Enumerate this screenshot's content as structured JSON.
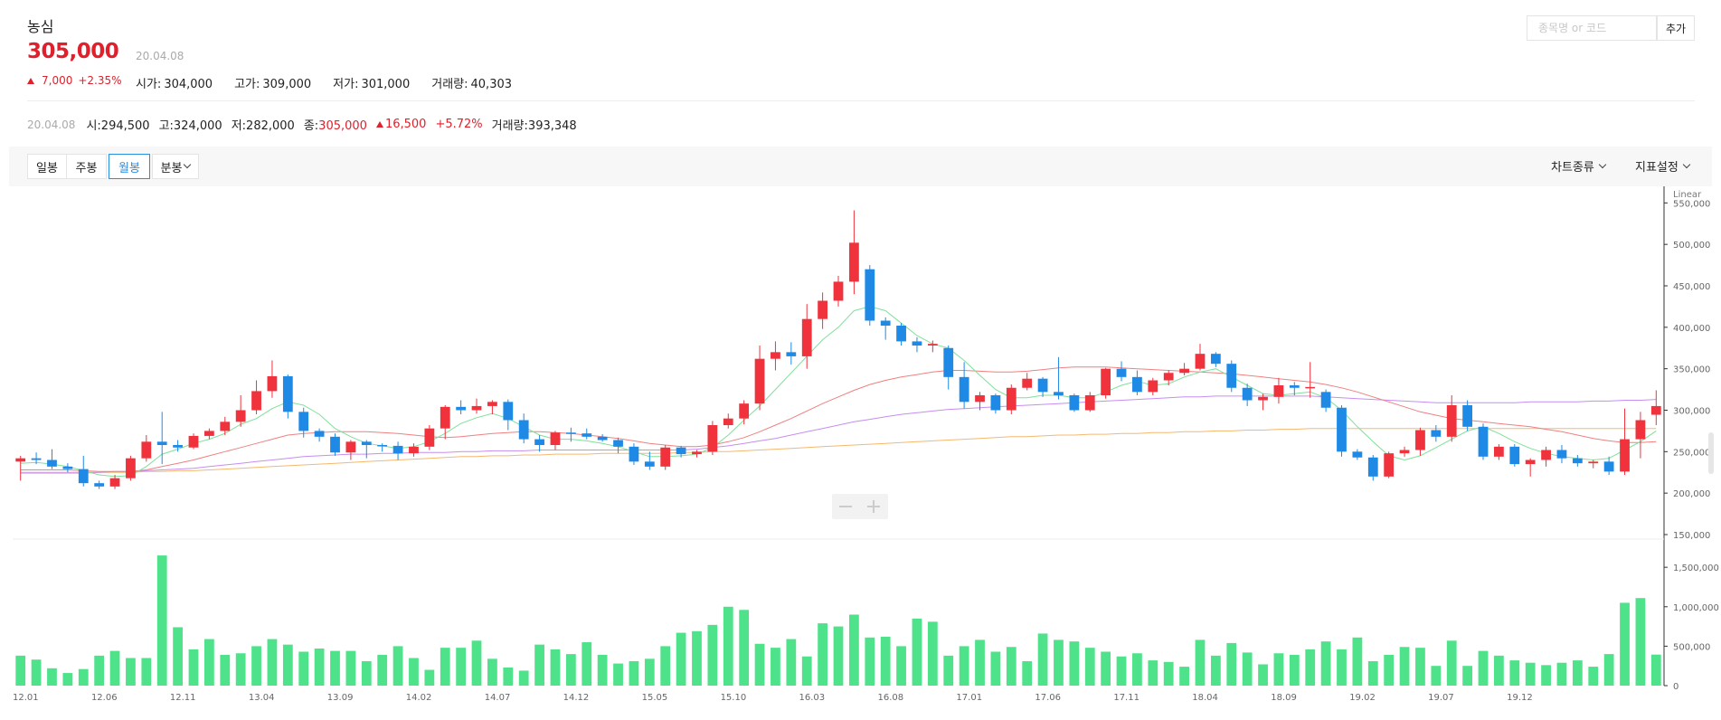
{
  "stock": {
    "name": "농심",
    "price": "305,000",
    "date": "20.04.08",
    "change": "7,000",
    "change_pct": "+2.35%",
    "open_label": "시가",
    "open": "304,000",
    "high_label": "고가",
    "high": "309,000",
    "low_label": "저가",
    "low": "301,000",
    "volume_label": "거래량",
    "volume": "40,303"
  },
  "search": {
    "placeholder": "종목명 or 코드",
    "add_label": "추가"
  },
  "info": {
    "date": "20.04.08",
    "open_label": "시",
    "open": "294,500",
    "high_label": "고",
    "high": "324,000",
    "low_label": "저",
    "low": "282,000",
    "close_label": "종",
    "close": "305,000",
    "change": "16,500",
    "change_pct": "+5.72%",
    "volume_label": "거래량",
    "volume": "393,348"
  },
  "toolbar": {
    "daily": "일봉",
    "weekly": "주봉",
    "monthly": "월봉",
    "minute": "분봉",
    "chart_type": "차트종류",
    "indicator": "지표설정"
  },
  "colors": {
    "up": "#f0323c",
    "down": "#1e8ae6",
    "volume": "#4ee38a",
    "ma5": "#7fe09a",
    "ma20": "#ef8080",
    "ma60": "#c68ef0",
    "ma120": "#f5b870"
  },
  "chart_data": {
    "type": "candlestick",
    "price_scale_label": "Linear",
    "y_ticks": [
      "150,000",
      "200,000",
      "250,000",
      "300,000",
      "350,000",
      "400,000",
      "450,000",
      "500,000",
      "550,000"
    ],
    "volume_ticks": [
      "0",
      "500,000",
      "1,000,000",
      "1,500,000"
    ],
    "x_ticks": [
      "12.01",
      "12.06",
      "12.11",
      "13.04",
      "13.09",
      "14.02",
      "14.07",
      "14.12",
      "15.05",
      "15.10",
      "16.03",
      "16.08",
      "17.01",
      "17.06",
      "17.11",
      "18.04",
      "18.09",
      "19.02",
      "19.07",
      "19.12"
    ],
    "ylim": [
      150000,
      570000
    ],
    "volume_lim": [
      0,
      1800000
    ],
    "candles": [
      [
        238000,
        242000,
        215000,
        245000,
        380000
      ],
      [
        242000,
        240000,
        235000,
        249000,
        330000
      ],
      [
        240000,
        232000,
        229000,
        253000,
        220000
      ],
      [
        232000,
        229000,
        225000,
        236000,
        160000
      ],
      [
        229000,
        212000,
        208000,
        245000,
        210000
      ],
      [
        212000,
        208000,
        205000,
        215000,
        380000
      ],
      [
        208000,
        218000,
        205000,
        222000,
        440000
      ],
      [
        218000,
        242000,
        215000,
        245000,
        350000
      ],
      [
        242000,
        262000,
        238000,
        270000,
        350000
      ],
      [
        262000,
        258000,
        235000,
        298000,
        1650000
      ],
      [
        258000,
        255000,
        250000,
        264000,
        740000
      ],
      [
        255000,
        269000,
        253000,
        272000,
        460000
      ],
      [
        269000,
        275000,
        265000,
        278000,
        590000
      ],
      [
        275000,
        286000,
        270000,
        292000,
        390000
      ],
      [
        286000,
        300000,
        280000,
        318000,
        410000
      ],
      [
        300000,
        323000,
        295000,
        336000,
        500000
      ],
      [
        323000,
        341000,
        315000,
        360000,
        590000
      ],
      [
        341000,
        298000,
        290000,
        343000,
        520000
      ],
      [
        298000,
        275000,
        267000,
        303000,
        430000
      ],
      [
        275000,
        268000,
        262000,
        278000,
        470000
      ],
      [
        268000,
        249000,
        245000,
        272000,
        440000
      ],
      [
        249000,
        262000,
        240000,
        264000,
        440000
      ],
      [
        262000,
        258000,
        242000,
        264000,
        310000
      ],
      [
        258000,
        257000,
        250000,
        260000,
        390000
      ],
      [
        257000,
        248000,
        240000,
        262000,
        500000
      ],
      [
        248000,
        256000,
        244000,
        260000,
        350000
      ],
      [
        256000,
        278000,
        252000,
        282000,
        200000
      ],
      [
        278000,
        304000,
        265000,
        306000,
        480000
      ],
      [
        304000,
        300000,
        295000,
        312000,
        480000
      ],
      [
        300000,
        305000,
        296000,
        314000,
        570000
      ],
      [
        305000,
        310000,
        295000,
        312000,
        340000
      ],
      [
        310000,
        288000,
        276000,
        313000,
        230000
      ],
      [
        288000,
        265000,
        260000,
        296000,
        190000
      ],
      [
        265000,
        258000,
        250000,
        270000,
        520000
      ],
      [
        258000,
        273000,
        252000,
        275000,
        460000
      ],
      [
        273000,
        272000,
        262000,
        279000,
        400000
      ],
      [
        272000,
        268000,
        265000,
        278000,
        550000
      ],
      [
        268000,
        264000,
        262000,
        271000,
        390000
      ],
      [
        264000,
        256000,
        248000,
        267000,
        280000
      ],
      [
        256000,
        238000,
        234000,
        260000,
        310000
      ],
      [
        238000,
        232000,
        228000,
        250000,
        340000
      ],
      [
        232000,
        255000,
        228000,
        258000,
        500000
      ],
      [
        255000,
        247000,
        243000,
        257000,
        670000
      ],
      [
        247000,
        250000,
        243000,
        252000,
        690000
      ],
      [
        250000,
        282000,
        246000,
        287000,
        770000
      ],
      [
        282000,
        290000,
        278000,
        296000,
        1000000
      ],
      [
        290000,
        308000,
        283000,
        312000,
        960000
      ],
      [
        308000,
        362000,
        300000,
        378000,
        530000
      ],
      [
        362000,
        370000,
        348000,
        383000,
        480000
      ],
      [
        370000,
        365000,
        355000,
        382000,
        590000
      ],
      [
        365000,
        410000,
        350000,
        428000,
        370000
      ],
      [
        410000,
        432000,
        398000,
        442000,
        790000
      ],
      [
        432000,
        455000,
        425000,
        462000,
        750000
      ],
      [
        455000,
        502000,
        440000,
        541000,
        900000
      ],
      [
        470000,
        408000,
        402000,
        475000,
        610000
      ],
      [
        408000,
        402000,
        385000,
        412000,
        620000
      ],
      [
        402000,
        383000,
        378000,
        405000,
        500000
      ],
      [
        383000,
        378000,
        370000,
        388000,
        850000
      ],
      [
        378000,
        380000,
        370000,
        384000,
        810000
      ],
      [
        375000,
        340000,
        325000,
        378000,
        380000
      ],
      [
        340000,
        310000,
        302000,
        358000,
        500000
      ],
      [
        310000,
        318000,
        300000,
        322000,
        580000
      ],
      [
        318000,
        300000,
        296000,
        320000,
        430000
      ],
      [
        300000,
        327000,
        295000,
        331000,
        490000
      ],
      [
        327000,
        338000,
        324000,
        345000,
        310000
      ],
      [
        338000,
        322000,
        316000,
        340000,
        660000
      ],
      [
        322000,
        318000,
        313000,
        364000,
        580000
      ],
      [
        318000,
        300000,
        298000,
        320000,
        560000
      ],
      [
        300000,
        318000,
        298000,
        322000,
        480000
      ],
      [
        318000,
        350000,
        314000,
        351000,
        430000
      ],
      [
        350000,
        340000,
        335000,
        359000,
        370000
      ],
      [
        340000,
        322000,
        318000,
        348000,
        410000
      ],
      [
        322000,
        336000,
        318000,
        339000,
        320000
      ],
      [
        336000,
        345000,
        330000,
        348000,
        300000
      ],
      [
        345000,
        350000,
        342000,
        357000,
        240000
      ],
      [
        350000,
        368000,
        348000,
        380000,
        580000
      ],
      [
        368000,
        356000,
        352000,
        370000,
        380000
      ],
      [
        356000,
        327000,
        322000,
        360000,
        540000
      ],
      [
        327000,
        312000,
        305000,
        332000,
        420000
      ],
      [
        312000,
        316000,
        300000,
        320000,
        270000
      ],
      [
        316000,
        330000,
        308000,
        339000,
        410000
      ],
      [
        330000,
        327000,
        318000,
        334000,
        390000
      ],
      [
        327000,
        328000,
        315000,
        358000,
        460000
      ],
      [
        322000,
        303000,
        298000,
        325000,
        560000
      ],
      [
        303000,
        250000,
        244000,
        306000,
        460000
      ],
      [
        250000,
        243000,
        240000,
        253000,
        610000
      ],
      [
        243000,
        220000,
        215000,
        246000,
        310000
      ],
      [
        220000,
        248000,
        218000,
        250000,
        390000
      ],
      [
        248000,
        252000,
        244000,
        256000,
        490000
      ],
      [
        252000,
        276000,
        245000,
        279000,
        480000
      ],
      [
        276000,
        268000,
        262000,
        282000,
        250000
      ],
      [
        268000,
        306000,
        262000,
        318000,
        570000
      ],
      [
        306000,
        280000,
        275000,
        312000,
        250000
      ],
      [
        280000,
        244000,
        240000,
        284000,
        440000
      ],
      [
        244000,
        256000,
        240000,
        259000,
        380000
      ],
      [
        256000,
        235000,
        232000,
        259000,
        320000
      ],
      [
        235000,
        240000,
        220000,
        242000,
        290000
      ],
      [
        240000,
        252000,
        232000,
        256000,
        260000
      ],
      [
        252000,
        242000,
        236000,
        258000,
        290000
      ],
      [
        242000,
        236000,
        232000,
        246000,
        320000
      ],
      [
        236000,
        238000,
        230000,
        240000,
        240000
      ],
      [
        238000,
        226000,
        222000,
        244000,
        400000
      ],
      [
        226000,
        265000,
        222000,
        302000,
        1050000
      ],
      [
        265000,
        288000,
        242000,
        298000,
        1110000
      ],
      [
        294500,
        305000,
        282000,
        324000,
        393348
      ]
    ],
    "ma5": [
      236000,
      237000,
      235000,
      232000,
      227000,
      222000,
      220000,
      221000,
      232000,
      247000,
      253000,
      260000,
      265000,
      272000,
      283000,
      290000,
      302000,
      310000,
      306000,
      295000,
      278000,
      268000,
      260000,
      257000,
      254000,
      256000,
      262000,
      272000,
      284000,
      291000,
      296000,
      290000,
      280000,
      270000,
      265000,
      265000,
      263000,
      260000,
      256000,
      250000,
      244000,
      244000,
      245000,
      247000,
      255000,
      270000,
      288000,
      305000,
      325000,
      345000,
      365000,
      385000,
      400000,
      420000,
      425000,
      420000,
      405000,
      390000,
      380000,
      375000,
      360000,
      342000,
      325000,
      315000,
      315000,
      318000,
      318000,
      315000,
      315000,
      322000,
      330000,
      335000,
      330000,
      332000,
      340000,
      346000,
      350000,
      340000,
      330000,
      320000,
      318000,
      320000,
      322000,
      315000,
      300000,
      280000,
      262000,
      245000,
      240000,
      245000,
      255000,
      265000,
      275000,
      280000,
      272000,
      262000,
      254000,
      248000,
      244000,
      242000,
      240000,
      242000,
      252000,
      262000,
      275000
    ],
    "ma20": [
      228000,
      228000,
      228000,
      228000,
      227000,
      226000,
      226000,
      226000,
      228000,
      232000,
      236000,
      240000,
      245000,
      250000,
      255000,
      260000,
      265000,
      270000,
      272000,
      273000,
      274000,
      274000,
      274000,
      273000,
      272000,
      270000,
      268000,
      267000,
      268000,
      270000,
      272000,
      273000,
      274000,
      274000,
      273000,
      272000,
      270000,
      268000,
      266000,
      263000,
      260000,
      258000,
      256000,
      256000,
      258000,
      262000,
      267000,
      274000,
      282000,
      290000,
      299000,
      308000,
      316000,
      324000,
      331000,
      336000,
      340000,
      343000,
      346000,
      348000,
      348000,
      347000,
      346000,
      346000,
      347000,
      349000,
      351000,
      352000,
      352000,
      352000,
      351000,
      350000,
      349000,
      348000,
      347000,
      346000,
      345000,
      344000,
      342000,
      340000,
      338000,
      336000,
      334000,
      331000,
      327000,
      322000,
      316000,
      310000,
      304000,
      298000,
      294000,
      290000,
      288000,
      286000,
      284000,
      282000,
      280000,
      277000,
      274000,
      270000,
      266000,
      263000,
      261000,
      261000,
      262000
    ],
    "ma60": [
      225000,
      225000,
      225000,
      225000,
      225000,
      225000,
      226000,
      226000,
      227000,
      228000,
      229000,
      230000,
      232000,
      234000,
      236000,
      238000,
      240000,
      242000,
      244000,
      245000,
      246000,
      247000,
      247000,
      248000,
      248000,
      249000,
      249000,
      249000,
      250000,
      250000,
      251000,
      251000,
      251000,
      252000,
      252000,
      252000,
      252000,
      252000,
      252000,
      252000,
      252000,
      252000,
      252000,
      253000,
      255000,
      257000,
      260000,
      263000,
      266000,
      270000,
      274000,
      278000,
      282000,
      286000,
      289000,
      292000,
      295000,
      297000,
      299000,
      301000,
      302000,
      303000,
      304000,
      305000,
      306000,
      307000,
      308000,
      309000,
      310000,
      311000,
      312000,
      313000,
      314000,
      315000,
      316000,
      316000,
      317000,
      317000,
      317000,
      317000,
      317000,
      317000,
      317000,
      316000,
      315000,
      314000,
      313000,
      312000,
      311000,
      310000,
      309000,
      309000,
      309000,
      309000,
      309000,
      309000,
      310000,
      310000,
      310000,
      310000,
      311000,
      311000,
      312000,
      312000,
      313000
    ],
    "ma120": [
      224000,
      224000,
      224000,
      224000,
      224000,
      225000,
      225000,
      225000,
      226000,
      226000,
      227000,
      227000,
      228000,
      229000,
      230000,
      231000,
      232000,
      233000,
      234000,
      235000,
      236000,
      237000,
      238000,
      239000,
      240000,
      241000,
      242000,
      243000,
      244000,
      244000,
      245000,
      245000,
      246000,
      246000,
      247000,
      247000,
      247000,
      248000,
      248000,
      248000,
      248000,
      248000,
      249000,
      249000,
      250000,
      250000,
      251000,
      252000,
      253000,
      254000,
      255000,
      256000,
      257000,
      258000,
      259000,
      260000,
      261000,
      262000,
      263000,
      264000,
      265000,
      266000,
      267000,
      268000,
      268000,
      269000,
      270000,
      270000,
      271000,
      271000,
      272000,
      272000,
      273000,
      273000,
      274000,
      274000,
      275000,
      275000,
      276000,
      276000,
      277000,
      277000,
      278000,
      278000,
      278000,
      278000,
      278000,
      278000,
      278000,
      278000,
      278000,
      278000,
      278000,
      278000,
      278000,
      278000,
      278000,
      278000,
      278000,
      278000,
      278000,
      278000,
      278000,
      278000,
      278000
    ]
  }
}
